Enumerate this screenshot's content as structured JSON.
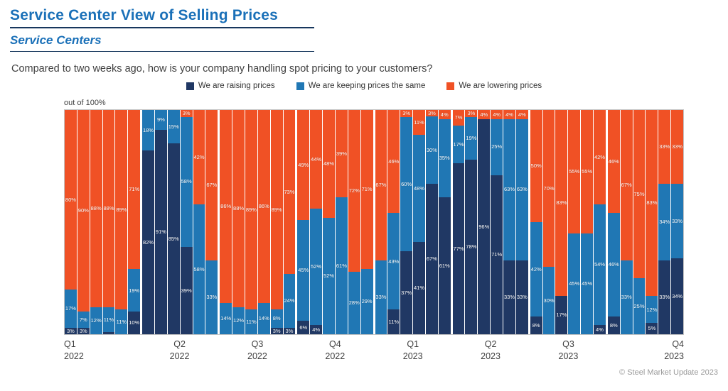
{
  "header": {
    "title": "Service Center View of Selling Prices",
    "subtitle": "Service Centers"
  },
  "question": "Compared to two weeks ago, how is your company handling spot pricing to your customers?",
  "legend": [
    {
      "label": "We are raising prices",
      "color": "#203864"
    },
    {
      "label": "We are keeping prices the same",
      "color": "#2077B4"
    },
    {
      "label": "We are lowering prices",
      "color": "#F05125"
    }
  ],
  "axis_note": "out of 100%",
  "footer": "© Steel Market Update 2023",
  "colors": {
    "title_blue": "#1A70B8",
    "divider_navy": "#17375D",
    "raising_navy": "#203864",
    "keeping_blue": "#2077B4",
    "lowering_orange": "#F05125"
  },
  "chart_data": {
    "type": "bar",
    "stacked": true,
    "percent": true,
    "title": "Service Center View of Selling Prices",
    "ylabel": "out of 100%",
    "ylim": [
      0,
      100
    ],
    "legend_position": "top-center",
    "grid": false,
    "bars_per_quarter": 6,
    "quarter_labels": [
      [
        "Q1",
        "2022"
      ],
      [
        "Q2",
        "2022"
      ],
      [
        "Q3",
        "2022"
      ],
      [
        "Q4",
        "2022"
      ],
      [
        "Q1",
        "2023"
      ],
      [
        "Q2",
        "2023"
      ],
      [
        "Q3",
        "2023"
      ],
      [
        "Q4",
        "2023"
      ]
    ],
    "label_min": 3,
    "series": [
      {
        "name": "We are raising prices",
        "key": "raising",
        "color": "#203864",
        "values": [
          3,
          3,
          0,
          1,
          0,
          10,
          82,
          91,
          85,
          39,
          0,
          0,
          0,
          0,
          0,
          0,
          3,
          3,
          6,
          4,
          0,
          0,
          0,
          0,
          0,
          11,
          37,
          41,
          67,
          61,
          77,
          78,
          96,
          71,
          33,
          33,
          8,
          0,
          17,
          0,
          0,
          4,
          8,
          0,
          0,
          5,
          33,
          34
        ]
      },
      {
        "name": "We are keeping prices the same",
        "key": "keeping",
        "color": "#2077B4",
        "values": [
          17,
          7,
          12,
          11,
          11,
          19,
          18,
          9,
          15,
          58,
          58,
          33,
          14,
          12,
          11,
          14,
          8,
          24,
          45,
          52,
          52,
          61,
          28,
          29,
          33,
          43,
          60,
          48,
          30,
          35,
          17,
          19,
          0,
          25,
          63,
          63,
          42,
          30,
          0,
          45,
          45,
          54,
          46,
          33,
          25,
          12,
          34,
          33
        ]
      },
      {
        "name": "We are lowering prices",
        "key": "lowering",
        "color": "#F05125",
        "values": [
          80,
          90,
          88,
          88,
          89,
          71,
          0,
          0,
          0,
          3,
          42,
          67,
          86,
          88,
          89,
          86,
          89,
          73,
          49,
          44,
          48,
          39,
          72,
          71,
          67,
          46,
          3,
          11,
          3,
          4,
          7,
          3,
          4,
          4,
          4,
          4,
          50,
          70,
          83,
          55,
          55,
          42,
          46,
          67,
          75,
          83,
          33,
          33
        ]
      }
    ]
  }
}
